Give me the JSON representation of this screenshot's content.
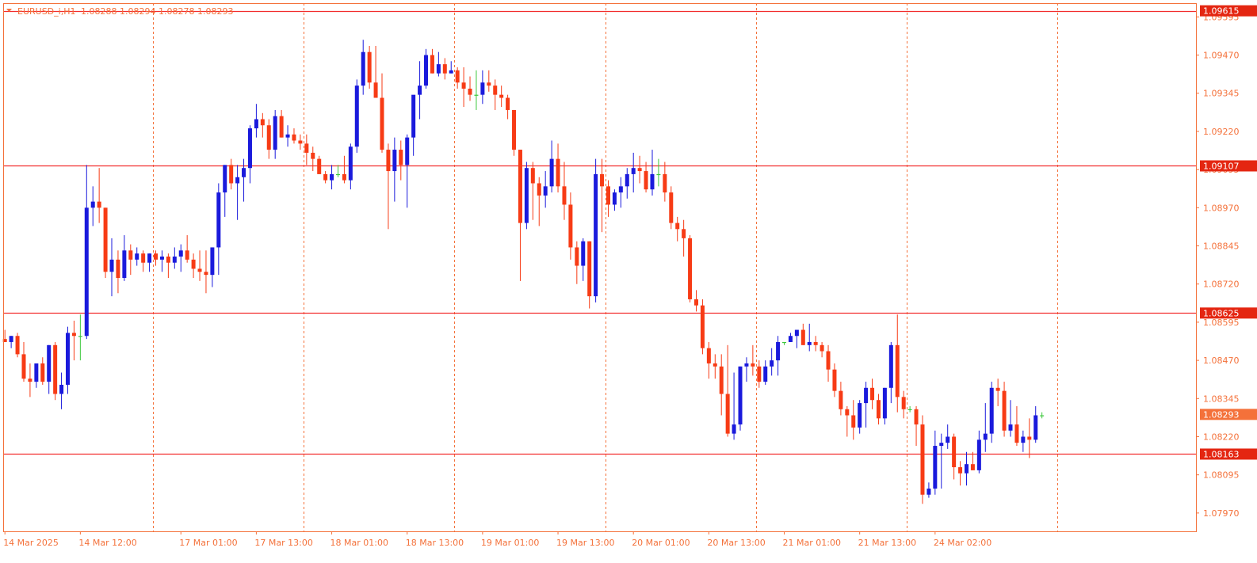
{
  "header": {
    "symbol_label": "EURUSD_i,H1",
    "ohlc_label": "1.08288 1.08294 1.08278 1.08293"
  },
  "colors": {
    "background": "#ffffff",
    "frame": "#f4713a",
    "grid": "#f4713a",
    "bull": "#1a1adc",
    "bear": "#f73b15",
    "doji": "#3cc83c",
    "level_line": "#f22e2e",
    "tag_red": "#e42611",
    "tag_orange": "#f4713a",
    "axis_text": "#f4713a"
  },
  "chart_data": {
    "type": "candlestick",
    "symbol": "EURUSD_i",
    "timeframe": "H1",
    "ylim": [
      1.0791,
      1.0964
    ],
    "y_ticks": [
      "1.09595",
      "1.09470",
      "1.09345",
      "1.09220",
      "1.09095",
      "1.08970",
      "1.08845",
      "1.08720",
      "1.08595",
      "1.08470",
      "1.08345",
      "1.08220",
      "1.08095",
      "1.07970"
    ],
    "x_labels": [
      {
        "label": "14 Mar 2025",
        "bar": 0
      },
      {
        "label": "14 Mar 12:00",
        "bar": 12
      },
      {
        "label": "17 Mar 01:00",
        "bar": 28
      },
      {
        "label": "17 Mar 13:00",
        "bar": 40
      },
      {
        "label": "18 Mar 01:00",
        "bar": 52
      },
      {
        "label": "18 Mar 13:00",
        "bar": 64
      },
      {
        "label": "19 Mar 01:00",
        "bar": 76
      },
      {
        "label": "19 Mar 13:00",
        "bar": 88
      },
      {
        "label": "20 Mar 01:00",
        "bar": 100
      },
      {
        "label": "20 Mar 13:00",
        "bar": 112
      },
      {
        "label": "21 Mar 01:00",
        "bar": 124
      },
      {
        "label": "21 Mar 13:00",
        "bar": 136
      },
      {
        "label": "24 Mar 02:00",
        "bar": 148
      }
    ],
    "vertical_separators_after_bar": [
      23,
      47,
      71,
      95,
      119,
      143,
      167
    ],
    "levels": [
      {
        "price": 1.09615,
        "label": "1.09615",
        "style": "red"
      },
      {
        "price": 1.09107,
        "label": "1.09107",
        "style": "red"
      },
      {
        "price": 1.08625,
        "label": "1.08625",
        "style": "red"
      },
      {
        "price": 1.08163,
        "label": "1.08163",
        "style": "red"
      }
    ],
    "current_price": {
      "price": 1.08293,
      "label": "1.08293"
    },
    "candles": [
      [
        1.0854,
        1.0857,
        1.0853,
        1.0853
      ],
      [
        1.0853,
        1.0855,
        1.0851,
        1.0855
      ],
      [
        1.0855,
        1.0856,
        1.0848,
        1.0849
      ],
      [
        1.0849,
        1.0853,
        1.084,
        1.0841
      ],
      [
        1.0841,
        1.0846,
        1.0835,
        1.084
      ],
      [
        1.084,
        1.0846,
        1.0838,
        1.0846
      ],
      [
        1.0846,
        1.0848,
        1.0839,
        1.084
      ],
      [
        1.084,
        1.0852,
        1.0836,
        1.0852
      ],
      [
        1.0852,
        1.0853,
        1.0834,
        1.0836
      ],
      [
        1.0836,
        1.0843,
        1.0831,
        1.0839
      ],
      [
        1.0839,
        1.0858,
        1.0836,
        1.0856
      ],
      [
        1.0856,
        1.086,
        1.0847,
        1.0855
      ],
      [
        1.0855,
        1.0862,
        1.0847,
        1.0855
      ],
      [
        1.0855,
        1.0911,
        1.0854,
        1.0897
      ],
      [
        1.0897,
        1.0904,
        1.0891,
        1.0899
      ],
      [
        1.0899,
        1.091,
        1.0892,
        1.0897
      ],
      [
        1.0897,
        1.0897,
        1.0874,
        1.0876
      ],
      [
        1.0876,
        1.0887,
        1.0868,
        1.088
      ],
      [
        1.088,
        1.0883,
        1.0869,
        1.0874
      ],
      [
        1.0874,
        1.0888,
        1.0873,
        1.0883
      ],
      [
        1.0883,
        1.0885,
        1.0875,
        1.088
      ],
      [
        1.088,
        1.0884,
        1.0878,
        1.0882
      ],
      [
        1.0882,
        1.0883,
        1.0876,
        1.0879
      ],
      [
        1.0879,
        1.0882,
        1.0876,
        1.0882
      ],
      [
        1.0882,
        1.0883,
        1.0878,
        1.088
      ],
      [
        1.088,
        1.0883,
        1.0876,
        1.0881
      ],
      [
        1.0881,
        1.0882,
        1.0874,
        1.0879
      ],
      [
        1.0879,
        1.0884,
        1.0877,
        1.0881
      ],
      [
        1.0881,
        1.0885,
        1.0876,
        1.0883
      ],
      [
        1.0883,
        1.0888,
        1.0879,
        1.088
      ],
      [
        1.088,
        1.0882,
        1.0874,
        1.0877
      ],
      [
        1.0877,
        1.0883,
        1.0873,
        1.0876
      ],
      [
        1.0876,
        1.0883,
        1.0869,
        1.0875
      ],
      [
        1.0875,
        1.0884,
        1.0871,
        1.0884
      ],
      [
        1.0884,
        1.0905,
        1.0875,
        1.0902
      ],
      [
        1.0902,
        1.0911,
        1.0894,
        1.0911
      ],
      [
        1.0911,
        1.0913,
        1.0903,
        1.0905
      ],
      [
        1.0905,
        1.0911,
        1.0893,
        1.0907
      ],
      [
        1.0907,
        1.0913,
        1.0899,
        1.091
      ],
      [
        1.091,
        1.0924,
        1.0905,
        1.0923
      ],
      [
        1.0923,
        1.0931,
        1.092,
        1.0926
      ],
      [
        1.0926,
        1.0928,
        1.092,
        1.0924
      ],
      [
        1.0924,
        1.0926,
        1.0913,
        1.0916
      ],
      [
        1.0916,
        1.0929,
        1.0913,
        1.0927
      ],
      [
        1.0927,
        1.0929,
        1.092,
        1.092
      ],
      [
        1.092,
        1.0924,
        1.0917,
        1.0921
      ],
      [
        1.0921,
        1.0923,
        1.0918,
        1.0919
      ],
      [
        1.0919,
        1.0921,
        1.0916,
        1.0918
      ],
      [
        1.0918,
        1.0921,
        1.0911,
        1.0915
      ],
      [
        1.0915,
        1.0917,
        1.0909,
        1.0913
      ],
      [
        1.0913,
        1.0914,
        1.0908,
        1.0908
      ],
      [
        1.0908,
        1.0909,
        1.0905,
        1.0906
      ],
      [
        1.0906,
        1.0911,
        1.0903,
        1.0908
      ],
      [
        1.0908,
        1.0911,
        1.0907,
        1.0908
      ],
      [
        1.0908,
        1.0914,
        1.0905,
        1.0906
      ],
      [
        1.0906,
        1.0918,
        1.0903,
        1.0917
      ],
      [
        1.0917,
        1.0939,
        1.0915,
        1.0937
      ],
      [
        1.0937,
        1.0952,
        1.0934,
        1.0948
      ],
      [
        1.0948,
        1.095,
        1.0936,
        1.0938
      ],
      [
        1.0938,
        1.095,
        1.0933,
        1.0933
      ],
      [
        1.0933,
        1.0941,
        1.0915,
        1.0916
      ],
      [
        1.0916,
        1.0918,
        1.089,
        1.0909
      ],
      [
        1.0909,
        1.092,
        1.0899,
        1.0916
      ],
      [
        1.0916,
        1.0919,
        1.0906,
        1.0911
      ],
      [
        1.0911,
        1.0921,
        1.0897,
        1.092
      ],
      [
        1.092,
        1.0933,
        1.0914,
        1.0934
      ],
      [
        1.0934,
        1.0945,
        1.0926,
        1.0937
      ],
      [
        1.0937,
        1.0949,
        1.0936,
        1.0947
      ],
      [
        1.0947,
        1.0949,
        1.0941,
        1.0941
      ],
      [
        1.0941,
        1.0948,
        1.094,
        1.0944
      ],
      [
        1.0944,
        1.0946,
        1.0939,
        1.0941
      ],
      [
        1.0941,
        1.0945,
        1.0941,
        1.0942
      ],
      [
        1.0942,
        1.0943,
        1.0936,
        1.0938
      ],
      [
        1.0938,
        1.0943,
        1.093,
        1.0936
      ],
      [
        1.0936,
        1.094,
        1.0932,
        1.0934
      ],
      [
        1.0934,
        1.0942,
        1.0929,
        1.0934
      ],
      [
        1.0934,
        1.0942,
        1.0931,
        1.0938
      ],
      [
        1.0938,
        1.0942,
        1.0935,
        1.0937
      ],
      [
        1.0937,
        1.0939,
        1.0929,
        1.0934
      ],
      [
        1.0934,
        1.0937,
        1.093,
        1.0933
      ],
      [
        1.0933,
        1.0934,
        1.0926,
        1.0929
      ],
      [
        1.0929,
        1.0929,
        1.0914,
        1.0916
      ],
      [
        1.0916,
        1.0916,
        1.0873,
        1.0892
      ],
      [
        1.0892,
        1.0912,
        1.089,
        1.091
      ],
      [
        1.091,
        1.0912,
        1.0893,
        1.0905
      ],
      [
        1.0905,
        1.0907,
        1.0891,
        1.0901
      ],
      [
        1.0901,
        1.0909,
        1.0897,
        1.0904
      ],
      [
        1.0904,
        1.0919,
        1.0902,
        1.0913
      ],
      [
        1.0913,
        1.0918,
        1.0902,
        1.0904
      ],
      [
        1.0904,
        1.0912,
        1.0893,
        1.0898
      ],
      [
        1.0898,
        1.0902,
        1.088,
        1.0884
      ],
      [
        1.0884,
        1.0886,
        1.0872,
        1.0878
      ],
      [
        1.0878,
        1.0887,
        1.0873,
        1.0886
      ],
      [
        1.0886,
        1.0886,
        1.0864,
        1.0868
      ],
      [
        1.0868,
        1.0913,
        1.0866,
        1.0908
      ],
      [
        1.0908,
        1.0913,
        1.0889,
        1.0904
      ],
      [
        1.0904,
        1.0906,
        1.0894,
        1.0898
      ],
      [
        1.0898,
        1.0903,
        1.0896,
        1.0902
      ],
      [
        1.0902,
        1.0907,
        1.0897,
        1.0904
      ],
      [
        1.0904,
        1.091,
        1.09,
        1.0908
      ],
      [
        1.0908,
        1.0915,
        1.0902,
        1.091
      ],
      [
        1.091,
        1.0914,
        1.0905,
        1.0909
      ],
      [
        1.0909,
        1.0912,
        1.0902,
        1.0903
      ],
      [
        1.0903,
        1.0916,
        1.0901,
        1.0908
      ],
      [
        1.0908,
        1.0913,
        1.0904,
        1.0908
      ],
      [
        1.0908,
        1.0912,
        1.0899,
        1.0902
      ],
      [
        1.0902,
        1.0904,
        1.089,
        1.0892
      ],
      [
        1.0892,
        1.0894,
        1.0886,
        1.089
      ],
      [
        1.089,
        1.0893,
        1.0881,
        1.0887
      ],
      [
        1.0887,
        1.0888,
        1.0866,
        1.0867
      ],
      [
        1.0867,
        1.087,
        1.0863,
        1.0865
      ],
      [
        1.0865,
        1.0867,
        1.0849,
        1.0851
      ],
      [
        1.0851,
        1.0853,
        1.0841,
        1.0846
      ],
      [
        1.0846,
        1.0849,
        1.0841,
        1.0845
      ],
      [
        1.0845,
        1.0849,
        1.0829,
        1.0836
      ],
      [
        1.0836,
        1.0852,
        1.0822,
        1.0823
      ],
      [
        1.0823,
        1.0843,
        1.0821,
        1.0826
      ],
      [
        1.0826,
        1.0845,
        1.0824,
        1.0845
      ],
      [
        1.0845,
        1.0848,
        1.084,
        1.0846
      ],
      [
        1.0846,
        1.0852,
        1.0842,
        1.0845
      ],
      [
        1.0845,
        1.0847,
        1.0838,
        1.084
      ],
      [
        1.084,
        1.0847,
        1.0839,
        1.0845
      ],
      [
        1.0845,
        1.0851,
        1.0842,
        1.0847
      ],
      [
        1.0847,
        1.0855,
        1.0842,
        1.0853
      ],
      [
        1.0853,
        1.0853,
        1.0852,
        1.0853
      ],
      [
        1.0853,
        1.0856,
        1.0853,
        1.0855
      ],
      [
        1.0855,
        1.0857,
        1.0851,
        1.0857
      ],
      [
        1.0857,
        1.0859,
        1.0852,
        1.0852
      ],
      [
        1.0852,
        1.0859,
        1.085,
        1.0853
      ],
      [
        1.0853,
        1.0855,
        1.085,
        1.0852
      ],
      [
        1.0852,
        1.0853,
        1.0848,
        1.085
      ],
      [
        1.085,
        1.0852,
        1.084,
        1.0844
      ],
      [
        1.0844,
        1.0846,
        1.0835,
        1.0837
      ],
      [
        1.0837,
        1.084,
        1.0829,
        1.0831
      ],
      [
        1.0831,
        1.0832,
        1.0822,
        1.0829
      ],
      [
        1.0829,
        1.0834,
        1.0821,
        1.0825
      ],
      [
        1.0825,
        1.0834,
        1.0823,
        1.0833
      ],
      [
        1.0833,
        1.084,
        1.0825,
        1.0838
      ],
      [
        1.0838,
        1.0841,
        1.0831,
        1.0834
      ],
      [
        1.0834,
        1.0836,
        1.0826,
        1.0828
      ],
      [
        1.0828,
        1.0838,
        1.0826,
        1.0838
      ],
      [
        1.0838,
        1.0853,
        1.0833,
        1.0852
      ],
      [
        1.0852,
        1.0862,
        1.083,
        1.0835
      ],
      [
        1.0835,
        1.0837,
        1.0828,
        1.0831
      ],
      [
        1.0831,
        1.0832,
        1.083,
        1.0831
      ],
      [
        1.0831,
        1.0832,
        1.0819,
        1.0826
      ],
      [
        1.0826,
        1.0829,
        1.08,
        1.0803
      ],
      [
        1.0803,
        1.0807,
        1.0802,
        1.0805
      ],
      [
        1.0805,
        1.0824,
        1.0803,
        1.0819
      ],
      [
        1.0819,
        1.0823,
        1.0805,
        1.082
      ],
      [
        1.082,
        1.0826,
        1.0818,
        1.0822
      ],
      [
        1.0822,
        1.0823,
        1.0808,
        1.0812
      ],
      [
        1.0812,
        1.0814,
        1.0806,
        1.081
      ],
      [
        1.081,
        1.0817,
        1.0806,
        1.0813
      ],
      [
        1.0813,
        1.0817,
        1.0811,
        1.0811
      ],
      [
        1.0811,
        1.0824,
        1.081,
        1.0821
      ],
      [
        1.0821,
        1.0833,
        1.0817,
        1.0823
      ],
      [
        1.0823,
        1.084,
        1.082,
        1.0838
      ],
      [
        1.0838,
        1.0841,
        1.0832,
        1.0837
      ],
      [
        1.0837,
        1.084,
        1.0822,
        1.0824
      ],
      [
        1.0824,
        1.0834,
        1.0822,
        1.0826
      ],
      [
        1.0826,
        1.0832,
        1.0819,
        1.082
      ],
      [
        1.082,
        1.0824,
        1.0817,
        1.0822
      ],
      [
        1.0822,
        1.0828,
        1.0815,
        1.0821
      ],
      [
        1.0821,
        1.0832,
        1.082,
        1.0829
      ],
      [
        1.0829,
        1.083,
        1.0828,
        1.0829
      ]
    ]
  }
}
